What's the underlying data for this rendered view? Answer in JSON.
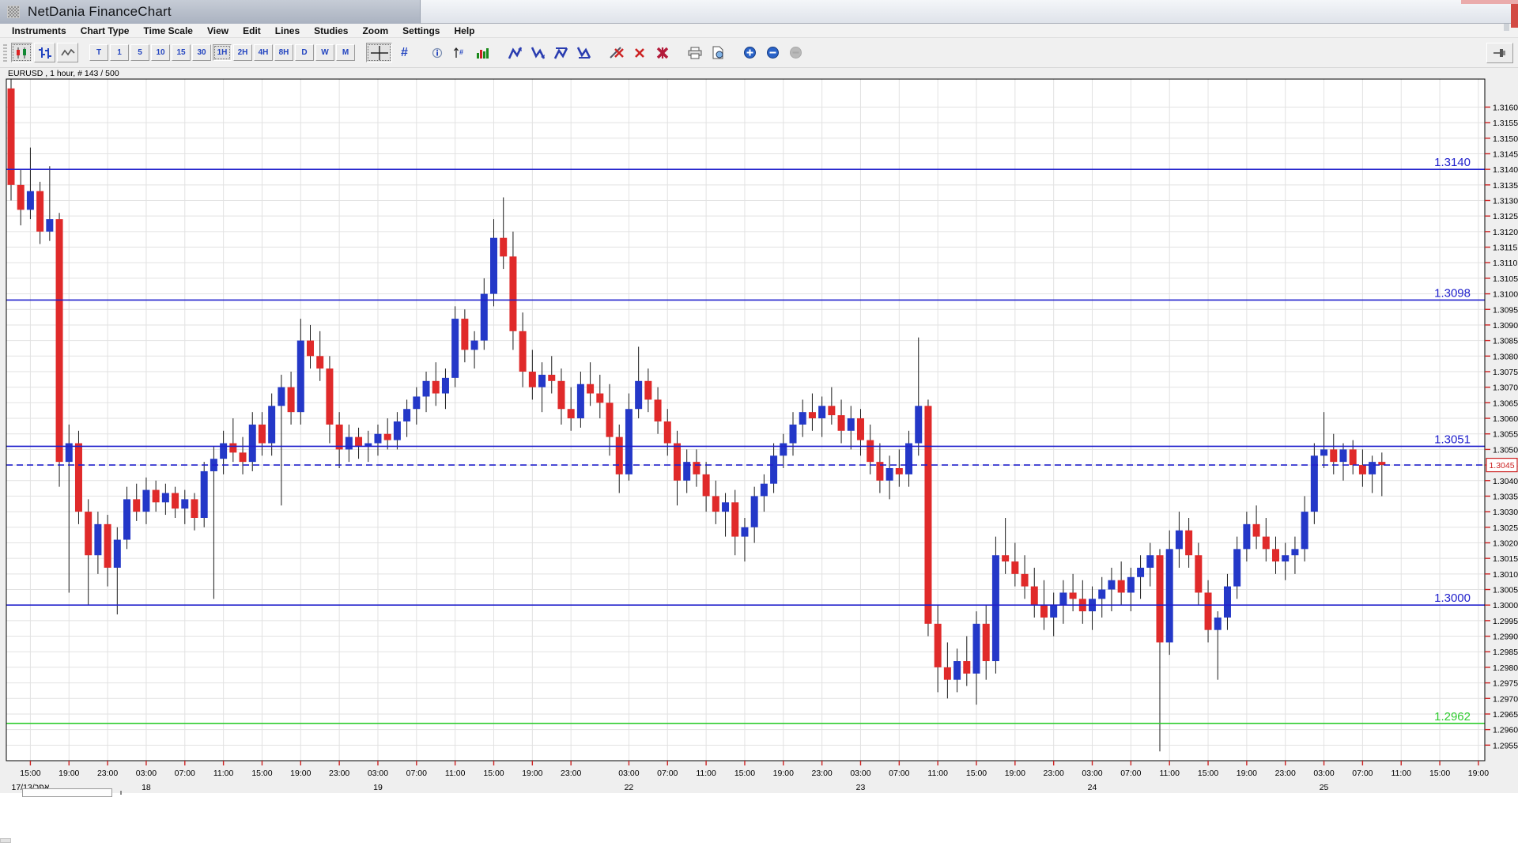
{
  "window": {
    "title": "NetDania FinanceChart"
  },
  "menu": {
    "items": [
      "Instruments",
      "Chart Type",
      "Time Scale",
      "View",
      "Edit",
      "Lines",
      "Studies",
      "Zoom",
      "Settings",
      "Help"
    ]
  },
  "toolbar": {
    "timeframes": [
      {
        "label": "T",
        "selected": false
      },
      {
        "label": "1",
        "selected": false
      },
      {
        "label": "5",
        "selected": false
      },
      {
        "label": "10",
        "selected": false
      },
      {
        "label": "15",
        "selected": false
      },
      {
        "label": "30",
        "selected": false
      },
      {
        "label": "1H",
        "selected": true
      },
      {
        "label": "2H",
        "selected": false
      },
      {
        "label": "4H",
        "selected": false
      },
      {
        "label": "8H",
        "selected": false
      },
      {
        "label": "D",
        "selected": false
      },
      {
        "label": "W",
        "selected": false
      },
      {
        "label": "M",
        "selected": false
      }
    ],
    "hash_glyph": "#"
  },
  "chart_data": {
    "type": "candlestick",
    "title": "EURUSD , 1 hour, # 143 / 500",
    "symbol": "EURUSD",
    "timeframe": "1 hour",
    "bar_counter": "# 143 / 500",
    "current_price": "1.3045",
    "ylim": [
      1.295,
      1.3169
    ],
    "colors": {
      "up": "#2438c8",
      "down": "#e02a2a",
      "wick": "#1a1a1a",
      "level_blue": "#2020cc",
      "level_green": "#2ecc2e",
      "tick_red": "#cc2222"
    },
    "levels": [
      {
        "price": 1.314,
        "label": "1.3140",
        "color": "#2020cc",
        "style": "solid"
      },
      {
        "price": 1.3098,
        "label": "1.3098",
        "color": "#2020cc",
        "style": "solid"
      },
      {
        "price": 1.3051,
        "label": "1.3051",
        "color": "#2020cc",
        "style": "solid"
      },
      {
        "price": 1.3045,
        "label": "",
        "color": "#2020cc",
        "style": "dashed",
        "axis_box": true
      },
      {
        "price": 1.3,
        "label": "1.3000",
        "color": "#2020cc",
        "style": "solid"
      },
      {
        "price": 1.2962,
        "label": "1.2962",
        "color": "#2ecc2e",
        "style": "solid"
      }
    ],
    "y_ticks": [
      "1.3160",
      "1.3155",
      "1.3150",
      "1.3145",
      "1.3140",
      "1.3135",
      "1.3130",
      "1.3125",
      "1.3120",
      "1.3115",
      "1.3110",
      "1.3105",
      "1.3100",
      "1.3095",
      "1.3090",
      "1.3085",
      "1.3080",
      "1.3075",
      "1.3070",
      "1.3065",
      "1.3060",
      "1.3055",
      "1.3050",
      "1.3045",
      "1.3040",
      "1.3035",
      "1.3030",
      "1.3025",
      "1.3020",
      "1.3015",
      "1.3010",
      "1.3005",
      "1.3000",
      "1.2995",
      "1.2990",
      "1.2985",
      "1.2980",
      "1.2975",
      "1.2970",
      "1.2965",
      "1.2960",
      "1.2955"
    ],
    "x_time_labels": [
      {
        "label": "15:00",
        "slot": 2
      },
      {
        "label": "19:00",
        "slot": 6
      },
      {
        "label": "23:00",
        "slot": 10
      },
      {
        "label": "03:00",
        "slot": 14
      },
      {
        "label": "07:00",
        "slot": 18
      },
      {
        "label": "11:00",
        "slot": 22
      },
      {
        "label": "15:00",
        "slot": 26
      },
      {
        "label": "19:00",
        "slot": 30
      },
      {
        "label": "23:00",
        "slot": 34
      },
      {
        "label": "03:00",
        "slot": 38
      },
      {
        "label": "07:00",
        "slot": 42
      },
      {
        "label": "11:00",
        "slot": 46
      },
      {
        "label": "15:00",
        "slot": 50
      },
      {
        "label": "19:00",
        "slot": 54
      },
      {
        "label": "23:00",
        "slot": 58
      },
      {
        "label": "03:00",
        "slot": 64
      },
      {
        "label": "07:00",
        "slot": 68
      },
      {
        "label": "11:00",
        "slot": 72
      },
      {
        "label": "15:00",
        "slot": 76
      },
      {
        "label": "19:00",
        "slot": 80
      },
      {
        "label": "23:00",
        "slot": 84
      },
      {
        "label": "03:00",
        "slot": 88
      },
      {
        "label": "07:00",
        "slot": 92
      },
      {
        "label": "11:00",
        "slot": 96
      },
      {
        "label": "15:00",
        "slot": 100
      },
      {
        "label": "19:00",
        "slot": 104
      },
      {
        "label": "23:00",
        "slot": 108
      },
      {
        "label": "03:00",
        "slot": 112
      },
      {
        "label": "07:00",
        "slot": 116
      },
      {
        "label": "11:00",
        "slot": 120
      },
      {
        "label": "15:00",
        "slot": 124
      },
      {
        "label": "19:00",
        "slot": 128
      },
      {
        "label": "23:00",
        "slot": 132
      },
      {
        "label": "03:00",
        "slot": 136
      },
      {
        "label": "07:00",
        "slot": 140
      },
      {
        "label": "11:00",
        "slot": 144
      },
      {
        "label": "15:00",
        "slot": 148
      },
      {
        "label": "19:00",
        "slot": 152
      }
    ],
    "x_date_labels": [
      {
        "label": "17/13/אפר",
        "slot": 2
      },
      {
        "label": "18",
        "slot": 14
      },
      {
        "label": "19",
        "slot": 38
      },
      {
        "label": "22",
        "slot": 64
      },
      {
        "label": "23",
        "slot": 88
      },
      {
        "label": "24",
        "slot": 112
      },
      {
        "label": "25",
        "slot": 136
      }
    ],
    "ohlc": [
      [
        1.3166,
        1.3169,
        1.313,
        1.3135
      ],
      [
        1.3135,
        1.314,
        1.3122,
        1.3127
      ],
      [
        1.3127,
        1.3147,
        1.3124,
        1.3133
      ],
      [
        1.3133,
        1.3136,
        1.3116,
        1.312
      ],
      [
        1.312,
        1.3141,
        1.3117,
        1.3124
      ],
      [
        1.3124,
        1.3126,
        1.3038,
        1.3046
      ],
      [
        1.3046,
        1.3058,
        1.3004,
        1.3052
      ],
      [
        1.3052,
        1.3056,
        1.3026,
        1.303
      ],
      [
        1.303,
        1.3034,
        1.3,
        1.3016
      ],
      [
        1.3016,
        1.303,
        1.301,
        1.3026
      ],
      [
        1.3026,
        1.3029,
        1.3006,
        1.3012
      ],
      [
        1.3012,
        1.3025,
        1.2997,
        1.3021
      ],
      [
        1.3021,
        1.3038,
        1.3018,
        1.3034
      ],
      [
        1.3034,
        1.3039,
        1.3027,
        1.303
      ],
      [
        1.303,
        1.3041,
        1.3026,
        1.3037
      ],
      [
        1.3037,
        1.304,
        1.303,
        1.3033
      ],
      [
        1.3033,
        1.3039,
        1.3029,
        1.3036
      ],
      [
        1.3036,
        1.3038,
        1.3028,
        1.3031
      ],
      [
        1.3031,
        1.3037,
        1.3026,
        1.3034
      ],
      [
        1.3034,
        1.3036,
        1.3024,
        1.3028
      ],
      [
        1.3028,
        1.3046,
        1.3025,
        1.3043
      ],
      [
        1.3043,
        1.3051,
        1.3002,
        1.3047
      ],
      [
        1.3047,
        1.3056,
        1.3042,
        1.3052
      ],
      [
        1.3052,
        1.306,
        1.3046,
        1.3049
      ],
      [
        1.3049,
        1.3054,
        1.3042,
        1.3046
      ],
      [
        1.3046,
        1.3062,
        1.3043,
        1.3058
      ],
      [
        1.3058,
        1.3062,
        1.3048,
        1.3052
      ],
      [
        1.3052,
        1.3068,
        1.3048,
        1.3064
      ],
      [
        1.3064,
        1.3074,
        1.3032,
        1.307
      ],
      [
        1.307,
        1.3075,
        1.3058,
        1.3062
      ],
      [
        1.3062,
        1.3092,
        1.3058,
        1.3085
      ],
      [
        1.3085,
        1.309,
        1.3076,
        1.308
      ],
      [
        1.308,
        1.3088,
        1.3072,
        1.3076
      ],
      [
        1.3076,
        1.308,
        1.3052,
        1.3058
      ],
      [
        1.3058,
        1.3062,
        1.3044,
        1.305
      ],
      [
        1.305,
        1.3058,
        1.3046,
        1.3054
      ],
      [
        1.3054,
        1.3057,
        1.3047,
        1.3051
      ],
      [
        1.3051,
        1.3056,
        1.3046,
        1.3052
      ],
      [
        1.3052,
        1.3058,
        1.3048,
        1.3055
      ],
      [
        1.3055,
        1.306,
        1.305,
        1.3053
      ],
      [
        1.3053,
        1.3062,
        1.305,
        1.3059
      ],
      [
        1.3059,
        1.3066,
        1.3054,
        1.3063
      ],
      [
        1.3063,
        1.307,
        1.3058,
        1.3067
      ],
      [
        1.3067,
        1.3075,
        1.3062,
        1.3072
      ],
      [
        1.3072,
        1.3078,
        1.3064,
        1.3068
      ],
      [
        1.3068,
        1.3076,
        1.3063,
        1.3073
      ],
      [
        1.3073,
        1.3096,
        1.307,
        1.3092
      ],
      [
        1.3092,
        1.3095,
        1.3078,
        1.3082
      ],
      [
        1.3082,
        1.3088,
        1.3076,
        1.3085
      ],
      [
        1.3085,
        1.3105,
        1.3082,
        1.31
      ],
      [
        1.31,
        1.3124,
        1.3096,
        1.3118
      ],
      [
        1.3118,
        1.3131,
        1.3108,
        1.3112
      ],
      [
        1.3112,
        1.312,
        1.3082,
        1.3088
      ],
      [
        1.3088,
        1.3094,
        1.307,
        1.3075
      ],
      [
        1.3075,
        1.3082,
        1.3066,
        1.307
      ],
      [
        1.307,
        1.3078,
        1.3062,
        1.3074
      ],
      [
        1.3074,
        1.308,
        1.3068,
        1.3072
      ],
      [
        1.3072,
        1.3076,
        1.3058,
        1.3063
      ],
      [
        1.3063,
        1.307,
        1.3056,
        1.306
      ],
      [
        1.306,
        1.3075,
        1.3057,
        1.3071
      ],
      [
        1.3071,
        1.3078,
        1.3064,
        1.3068
      ],
      [
        1.3068,
        1.3074,
        1.306,
        1.3065
      ],
      [
        1.3065,
        1.3071,
        1.3048,
        1.3054
      ],
      [
        1.3054,
        1.3058,
        1.3036,
        1.3042
      ],
      [
        1.3042,
        1.3068,
        1.304,
        1.3063
      ],
      [
        1.3063,
        1.3083,
        1.306,
        1.3072
      ],
      [
        1.3072,
        1.3076,
        1.3062,
        1.3066
      ],
      [
        1.3066,
        1.307,
        1.3055,
        1.3059
      ],
      [
        1.3059,
        1.3063,
        1.3048,
        1.3052
      ],
      [
        1.3052,
        1.3056,
        1.3032,
        1.304
      ],
      [
        1.304,
        1.305,
        1.3036,
        1.3046
      ],
      [
        1.3046,
        1.305,
        1.3038,
        1.3042
      ],
      [
        1.3042,
        1.3046,
        1.303,
        1.3035
      ],
      [
        1.3035,
        1.304,
        1.3026,
        1.303
      ],
      [
        1.303,
        1.3036,
        1.3022,
        1.3033
      ],
      [
        1.3033,
        1.3037,
        1.3016,
        1.3022
      ],
      [
        1.3022,
        1.3028,
        1.3014,
        1.3025
      ],
      [
        1.3025,
        1.3038,
        1.302,
        1.3035
      ],
      [
        1.3035,
        1.3042,
        1.303,
        1.3039
      ],
      [
        1.3039,
        1.3052,
        1.3036,
        1.3048
      ],
      [
        1.3048,
        1.3055,
        1.3044,
        1.3052
      ],
      [
        1.3052,
        1.3062,
        1.3048,
        1.3058
      ],
      [
        1.3058,
        1.3066,
        1.3054,
        1.3062
      ],
      [
        1.3062,
        1.3068,
        1.3056,
        1.306
      ],
      [
        1.306,
        1.3067,
        1.3054,
        1.3064
      ],
      [
        1.3064,
        1.307,
        1.3058,
        1.3061
      ],
      [
        1.3061,
        1.3066,
        1.3052,
        1.3056
      ],
      [
        1.3056,
        1.3064,
        1.305,
        1.306
      ],
      [
        1.306,
        1.3063,
        1.3048,
        1.3053
      ],
      [
        1.3053,
        1.3058,
        1.3042,
        1.3046
      ],
      [
        1.3046,
        1.3052,
        1.3036,
        1.304
      ],
      [
        1.304,
        1.3048,
        1.3034,
        1.3044
      ],
      [
        1.3044,
        1.305,
        1.3038,
        1.3042
      ],
      [
        1.3042,
        1.3056,
        1.3038,
        1.3052
      ],
      [
        1.3052,
        1.3086,
        1.3048,
        1.3064
      ],
      [
        1.3064,
        1.3066,
        1.299,
        1.2994
      ],
      [
        1.2994,
        1.3,
        1.2972,
        1.298
      ],
      [
        1.298,
        1.2988,
        1.297,
        1.2976
      ],
      [
        1.2976,
        1.2986,
        1.2972,
        1.2982
      ],
      [
        1.2982,
        1.299,
        1.2974,
        1.2978
      ],
      [
        1.2978,
        1.2998,
        1.2968,
        1.2994
      ],
      [
        1.2994,
        1.3,
        1.2976,
        1.2982
      ],
      [
        1.2982,
        1.3022,
        1.2978,
        1.3016
      ],
      [
        1.3016,
        1.3028,
        1.301,
        1.3014
      ],
      [
        1.3014,
        1.302,
        1.3006,
        1.301
      ],
      [
        1.301,
        1.3016,
        1.3002,
        1.3006
      ],
      [
        1.3006,
        1.3012,
        1.2996,
        1.3
      ],
      [
        1.3,
        1.3008,
        1.2992,
        1.2996
      ],
      [
        1.2996,
        1.3004,
        1.299,
        1.3
      ],
      [
        1.3,
        1.3008,
        1.2994,
        1.3004
      ],
      [
        1.3004,
        1.301,
        1.2998,
        1.3002
      ],
      [
        1.3002,
        1.3008,
        1.2994,
        1.2998
      ],
      [
        1.2998,
        1.3006,
        1.2992,
        1.3002
      ],
      [
        1.3002,
        1.3009,
        1.2996,
        1.3005
      ],
      [
        1.3005,
        1.3012,
        1.2998,
        1.3008
      ],
      [
        1.3008,
        1.3014,
        1.3,
        1.3004
      ],
      [
        1.3004,
        1.3012,
        1.2998,
        1.3009
      ],
      [
        1.3009,
        1.3016,
        1.3002,
        1.3012
      ],
      [
        1.3012,
        1.302,
        1.3006,
        1.3016
      ],
      [
        1.3016,
        1.3018,
        1.2953,
        1.2988
      ],
      [
        1.2988,
        1.3024,
        1.2984,
        1.3018
      ],
      [
        1.3018,
        1.303,
        1.3012,
        1.3024
      ],
      [
        1.3024,
        1.3028,
        1.3012,
        1.3016
      ],
      [
        1.3016,
        1.302,
        1.3,
        1.3004
      ],
      [
        1.3004,
        1.3008,
        1.2988,
        1.2992
      ],
      [
        1.2992,
        1.2998,
        1.2976,
        1.2996
      ],
      [
        1.2996,
        1.301,
        1.2992,
        1.3006
      ],
      [
        1.3006,
        1.3022,
        1.3002,
        1.3018
      ],
      [
        1.3018,
        1.303,
        1.3014,
        1.3026
      ],
      [
        1.3026,
        1.3032,
        1.3018,
        1.3022
      ],
      [
        1.3022,
        1.3028,
        1.3014,
        1.3018
      ],
      [
        1.3018,
        1.3022,
        1.301,
        1.3014
      ],
      [
        1.3014,
        1.302,
        1.3008,
        1.3016
      ],
      [
        1.3016,
        1.3022,
        1.301,
        1.3018
      ],
      [
        1.3018,
        1.3035,
        1.3014,
        1.303
      ],
      [
        1.303,
        1.3052,
        1.3026,
        1.3048
      ],
      [
        1.3048,
        1.3062,
        1.3044,
        1.305
      ],
      [
        1.305,
        1.3055,
        1.3042,
        1.3046
      ],
      [
        1.3046,
        1.3052,
        1.304,
        1.305
      ],
      [
        1.305,
        1.3053,
        1.3042,
        1.3045
      ],
      [
        1.3045,
        1.305,
        1.3038,
        1.3042
      ],
      [
        1.3042,
        1.3048,
        1.3036,
        1.3046
      ],
      [
        1.3046,
        1.3049,
        1.3035,
        1.3045
      ]
    ]
  }
}
